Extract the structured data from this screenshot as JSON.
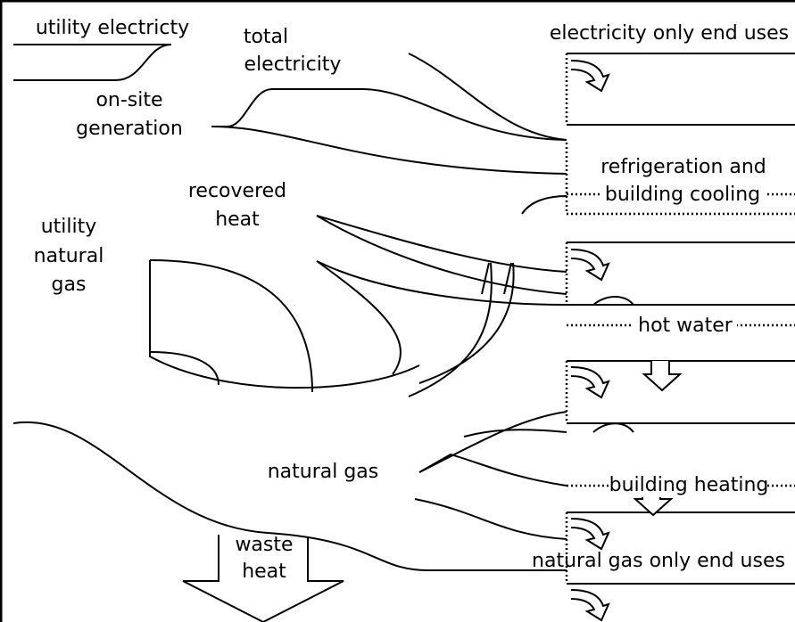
{
  "sources": [
    {
      "lines": [
        "utility electricty"
      ]
    },
    {
      "lines": [
        "total",
        "electricity"
      ]
    },
    {
      "lines": [
        "on-site",
        "generation"
      ]
    },
    {
      "lines": [
        "recovered",
        "heat"
      ]
    },
    {
      "lines": [
        "utility",
        "natural",
        "gas"
      ]
    },
    {
      "lines": [
        "natural gas"
      ]
    },
    {
      "lines": [
        "waste",
        "heat"
      ]
    }
  ],
  "end_uses": [
    {
      "lines": [
        "electricity only end uses"
      ]
    },
    {
      "lines": [
        "refrigeration and",
        "building cooling"
      ]
    },
    {
      "lines": [
        "hot water"
      ]
    },
    {
      "lines": [
        "building heating"
      ]
    },
    {
      "lines": [
        "natural gas only end uses"
      ]
    }
  ]
}
